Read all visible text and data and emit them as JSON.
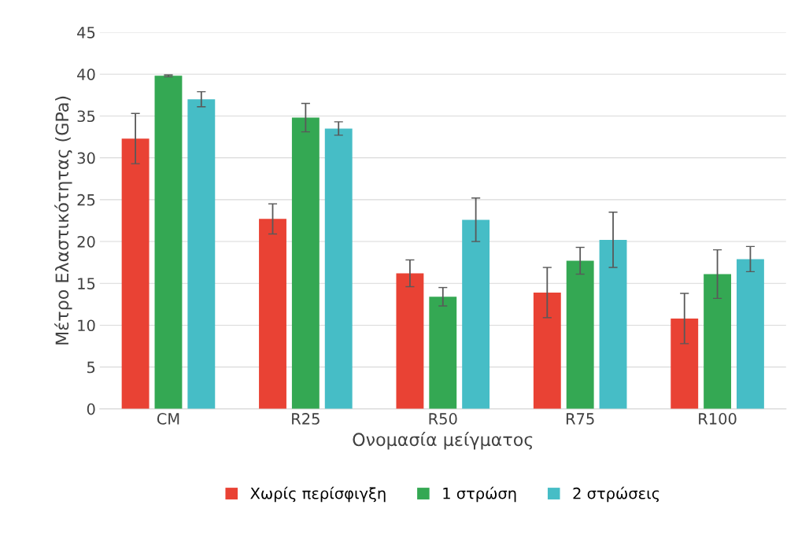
{
  "chart_data": {
    "type": "bar",
    "xlabel": "Ονομασία μείγματος",
    "ylabel": "Μέτρο Ελαστικότητας (GPa)",
    "categories": [
      "CM",
      "R25",
      "R50",
      "R75",
      "R100"
    ],
    "series": [
      {
        "name": "Χωρίς περίσφιγξη",
        "color": "#e94234",
        "values": [
          32.3,
          22.7,
          16.2,
          13.9,
          10.8
        ],
        "errors": [
          3.0,
          1.8,
          1.6,
          3.0,
          3.0
        ]
      },
      {
        "name": "1 στρώση",
        "color": "#34a853",
        "values": [
          39.8,
          34.8,
          13.4,
          17.7,
          16.1
        ],
        "errors": [
          0.1,
          1.7,
          1.1,
          1.6,
          2.9
        ]
      },
      {
        "name": "2 στρώσεις",
        "color": "#46bdc6",
        "values": [
          37.0,
          33.5,
          22.6,
          20.2,
          17.9
        ],
        "errors": [
          0.9,
          0.8,
          2.6,
          3.3,
          1.5
        ]
      }
    ],
    "ylim": [
      0,
      45
    ],
    "yticks": [
      0,
      5,
      10,
      15,
      20,
      25,
      30,
      35,
      40,
      45
    ],
    "grid": "y",
    "legend": "bottom"
  }
}
